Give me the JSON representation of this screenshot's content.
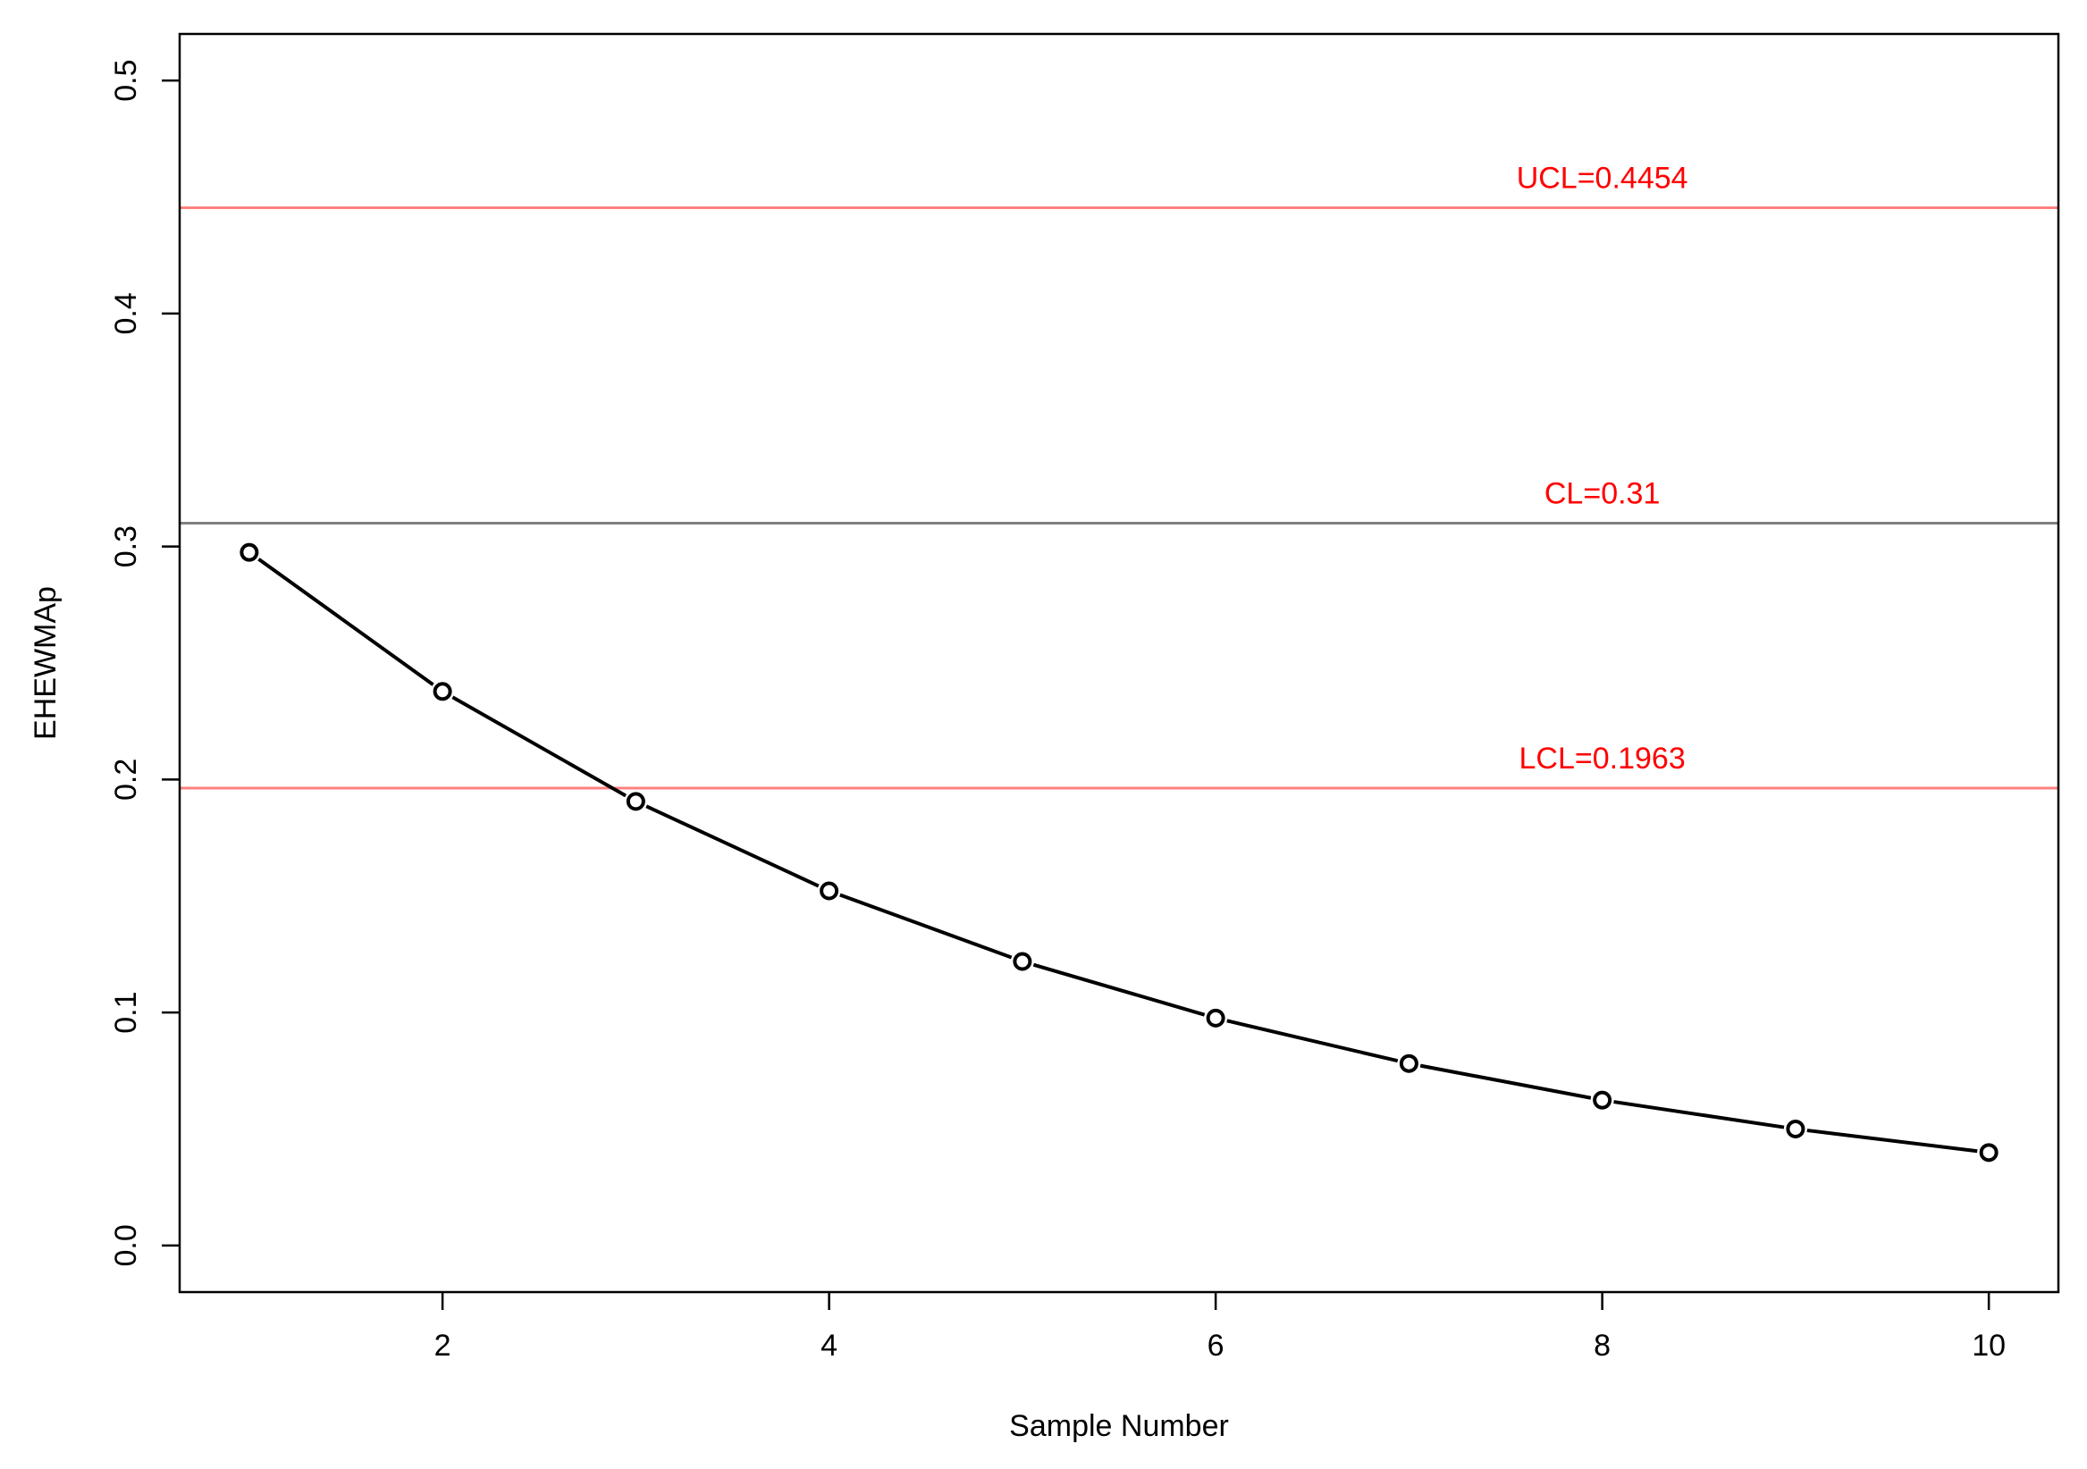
{
  "chart_data": {
    "type": "line",
    "title": "",
    "xlabel": "Sample Number",
    "ylabel": "EHEWMAp",
    "xlim": [
      0.64,
      10.36
    ],
    "ylim": [
      -0.02,
      0.52
    ],
    "x_ticks": [
      2,
      4,
      6,
      8,
      10
    ],
    "x_tick_labels": [
      "2",
      "4",
      "6",
      "8",
      "10"
    ],
    "y_ticks": [
      0.0,
      0.1,
      0.2,
      0.3,
      0.4,
      0.5
    ],
    "y_tick_labels": [
      "0.0",
      "0.1",
      "0.2",
      "0.3",
      "0.4",
      "0.5"
    ],
    "grid": false,
    "series": [
      {
        "x": [
          1,
          2,
          3,
          4,
          5,
          6,
          7,
          8,
          9,
          10
        ],
        "values": [
          0.2975,
          0.2378,
          0.1906,
          0.1522,
          0.1219,
          0.0976,
          0.0781,
          0.0624,
          0.05,
          0.0399
        ],
        "color": "#000000",
        "marker": "open-circle"
      }
    ],
    "control_lines": [
      {
        "id": "ucl",
        "label": "UCL=0.4454",
        "value": 0.4454,
        "line_color": "#ff8080",
        "label_color": "#ff0000"
      },
      {
        "id": "cl",
        "label": "CL=0.31",
        "value": 0.31,
        "line_color": "#808080",
        "label_color": "#ff0000"
      },
      {
        "id": "lcl",
        "label": "LCL=0.1963",
        "value": 0.1963,
        "line_color": "#ff8080",
        "label_color": "#ff0000"
      }
    ],
    "control_label_x": 8
  }
}
